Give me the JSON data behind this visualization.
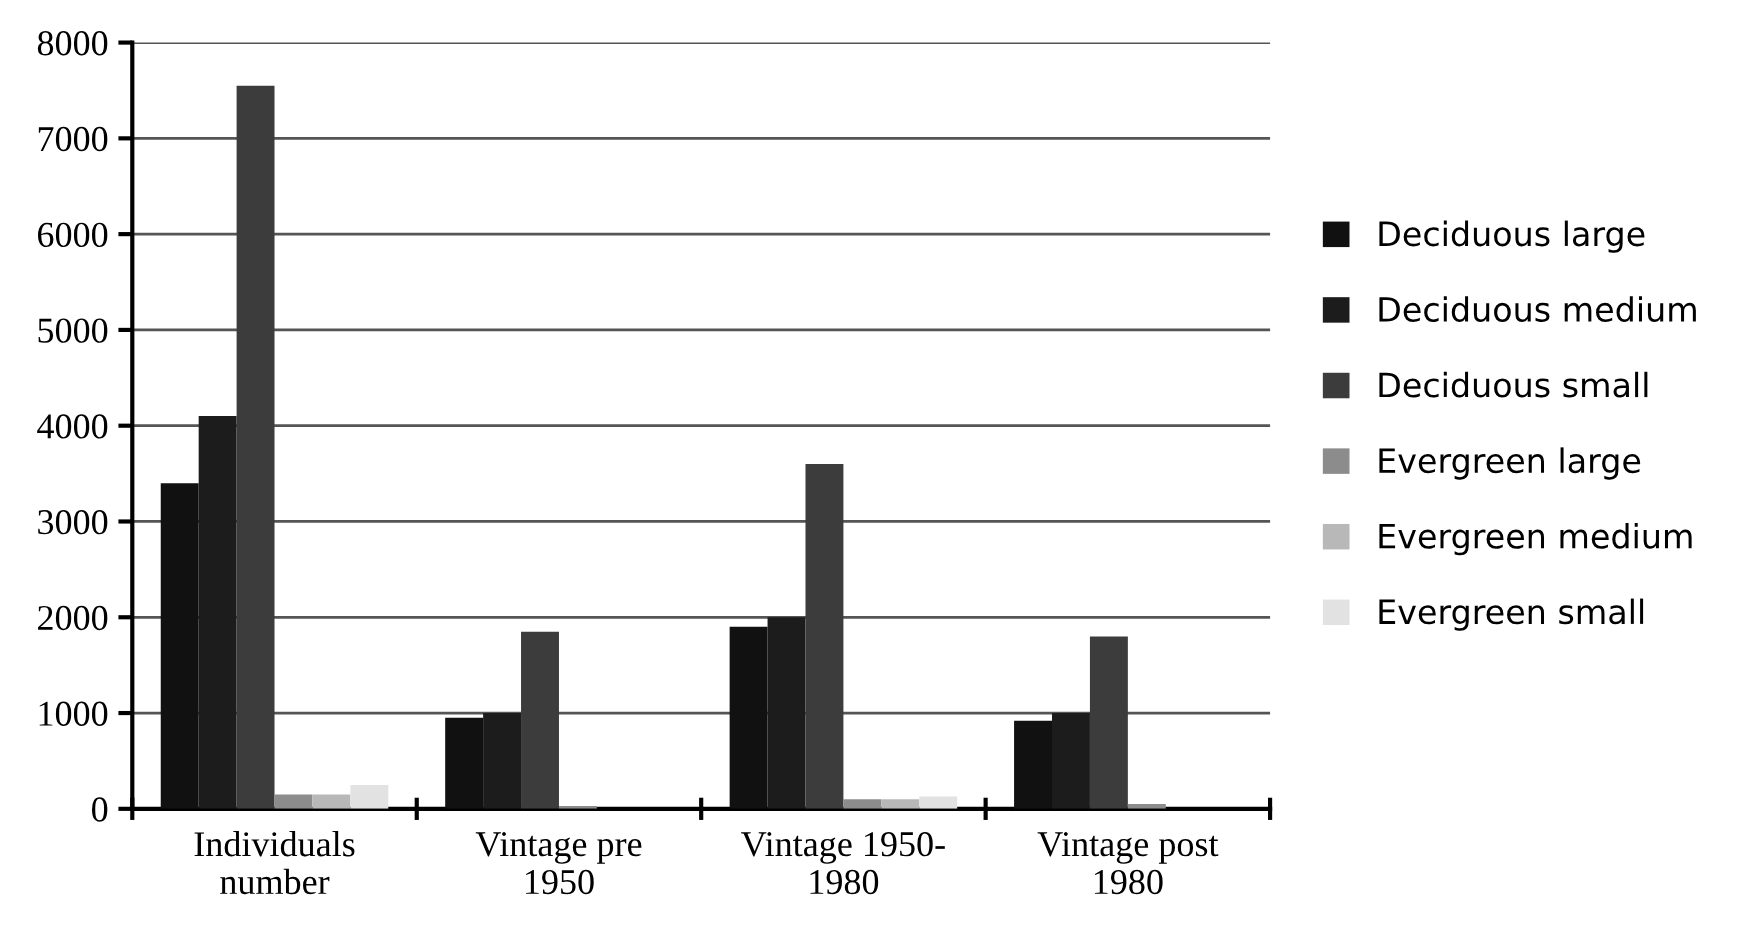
{
  "chart_data": {
    "type": "bar",
    "categories": [
      "Individuals\nnumber",
      "Vintage pre\n1950",
      "Vintage 1950-\n1980",
      "Vintage post\n1980"
    ],
    "series": [
      {
        "name": "Deciduous large",
        "color": "#111111",
        "values": [
          3400,
          950,
          1900,
          920
        ]
      },
      {
        "name": "Deciduous medium",
        "color": "#1c1c1c",
        "values": [
          4100,
          1000,
          2000,
          1000
        ]
      },
      {
        "name": "Deciduous small",
        "color": "#3c3c3c",
        "values": [
          7550,
          1850,
          3600,
          1800
        ]
      },
      {
        "name": "Evergreen large",
        "color": "#8c8c8c",
        "values": [
          150,
          30,
          100,
          50
        ]
      },
      {
        "name": "Evergreen medium",
        "color": "#b8b8b8",
        "values": [
          150,
          null,
          100,
          null
        ]
      },
      {
        "name": "Evergreen small",
        "color": "#e2e2e2",
        "values": [
          250,
          null,
          130,
          null
        ]
      }
    ],
    "ylim": [
      0,
      8000
    ],
    "yticks": [
      0,
      1000,
      2000,
      3000,
      4000,
      5000,
      6000,
      7000,
      8000
    ],
    "grid": "y",
    "legend": "right"
  }
}
